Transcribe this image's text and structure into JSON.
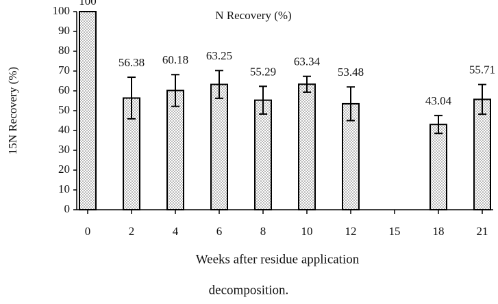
{
  "chart_data": {
    "type": "bar",
    "title": "N Recovery (%)",
    "y_label": "15N Recovery (%)",
    "x_label": "Weeks after residue application",
    "caption": "decomposition.",
    "categories": [
      "0",
      "2",
      "4",
      "6",
      "8",
      "10",
      "12",
      "15",
      "18",
      "21"
    ],
    "values": [
      100,
      56.38,
      60.18,
      63.25,
      55.29,
      63.34,
      53.48,
      null,
      43.04,
      55.71
    ],
    "errors": [
      null,
      10.5,
      8,
      7,
      7,
      4,
      8.5,
      null,
      4.5,
      7.5
    ],
    "color": "#000000",
    "ylim": [
      0,
      100
    ],
    "yticks": [
      0,
      10,
      20,
      30,
      40,
      50,
      60,
      70,
      80,
      90,
      100
    ],
    "grid": false
  }
}
